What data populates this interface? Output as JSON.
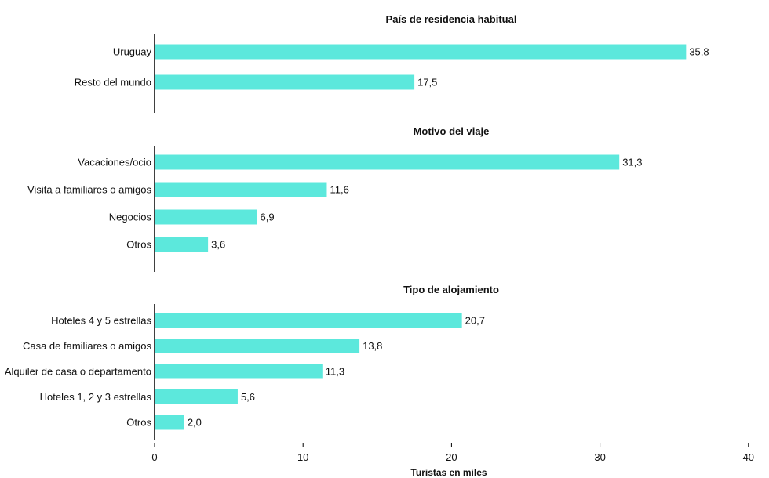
{
  "chart_data": {
    "type": "bar",
    "orientation": "horizontal",
    "xlabel": "Turistas en miles",
    "xlim": [
      0,
      40
    ],
    "x_ticks": [
      "0",
      "10",
      "20",
      "30",
      "40"
    ],
    "bar_color": "#5ce8dc",
    "grid": false,
    "panels": [
      {
        "title": "País de residencia habitual",
        "categories": [
          "Uruguay",
          "Resto del mundo"
        ],
        "values": [
          35.8,
          17.5
        ],
        "value_labels": [
          "35,8",
          "17,5"
        ]
      },
      {
        "title": "Motivo del viaje",
        "categories": [
          "Vacaciones/ocio",
          "Visita a familiares o amigos",
          "Negocios",
          "Otros"
        ],
        "values": [
          31.3,
          11.6,
          6.9,
          3.6
        ],
        "value_labels": [
          "31,3",
          "11,6",
          "6,9",
          "3,6"
        ]
      },
      {
        "title": "Tipo de alojamiento",
        "categories": [
          "Hoteles 4 y 5 estrellas",
          "Casa de familiares o amigos",
          "Alquiler de casa o departamento",
          "Hoteles 1, 2 y 3 estrellas",
          "Otros"
        ],
        "values": [
          20.7,
          13.8,
          11.3,
          5.6,
          2.0
        ],
        "value_labels": [
          "20,7",
          "13,8",
          "11,3",
          "5,6",
          "2,0"
        ]
      }
    ]
  }
}
